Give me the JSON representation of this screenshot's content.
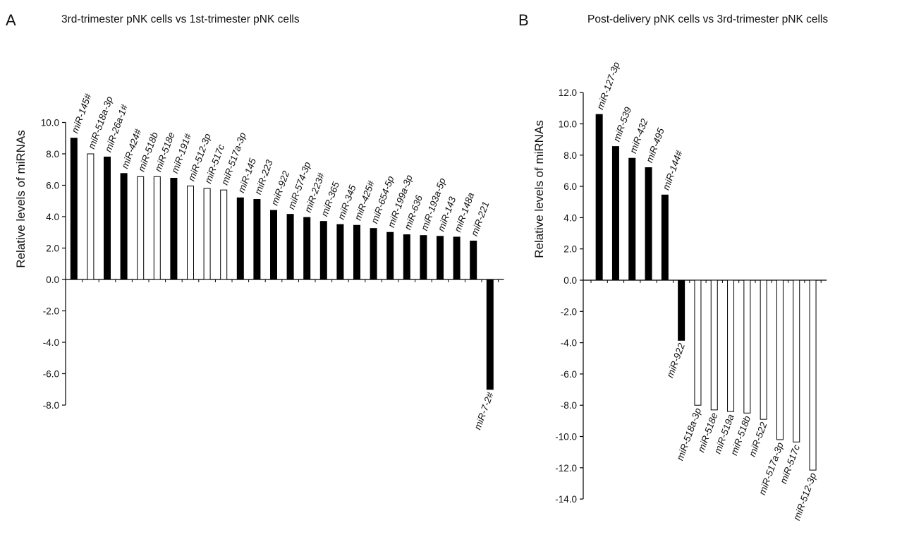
{
  "chart_data": [
    {
      "type": "bar",
      "panel": "A",
      "title": "3rd-trimester pNK cells vs 1st-trimester pNK cells",
      "xlabel": "",
      "ylabel": "Relative levels of miRNAs",
      "ylim": [
        -8.0,
        10.0
      ],
      "yticks": [
        "10.0",
        "8.0",
        "6.0",
        "4.0",
        "2.0",
        "0.0",
        "-2.0",
        "-4.0",
        "-6.0",
        "-8.0"
      ],
      "grid": false,
      "categories": [
        "miR-145#",
        "miR-518a-3p",
        "miR-26a-1#",
        "miR-424#",
        "miR-518b",
        "miR-518e",
        "miR-191#",
        "miR-512-3p",
        "miR-517c",
        "miR-517a-3p",
        "miR-145",
        "miR-223",
        "miR-922",
        "miR-574-3p",
        "miR-223#",
        "miR-365",
        "miR-345",
        "miR-425#",
        "miR-654-5p",
        "miR-199a-3p",
        "miR-636",
        "miR-193a-5p",
        "miR-143",
        "miR-148a",
        "miR-221",
        "miR-7-2#"
      ],
      "values": [
        9.0,
        8.0,
        7.8,
        6.75,
        6.55,
        6.55,
        6.45,
        5.95,
        5.8,
        5.7,
        5.2,
        5.1,
        4.4,
        4.15,
        3.95,
        3.7,
        3.5,
        3.45,
        3.25,
        3.0,
        2.85,
        2.8,
        2.75,
        2.7,
        2.45,
        -7.0
      ],
      "fill": [
        "black",
        "white",
        "black",
        "black",
        "white",
        "white",
        "black",
        "white",
        "white",
        "white",
        "black",
        "black",
        "black",
        "black",
        "black",
        "black",
        "black",
        "black",
        "black",
        "black",
        "black",
        "black",
        "black",
        "black",
        "black",
        "black"
      ]
    },
    {
      "type": "bar",
      "panel": "B",
      "title": "Post-delivery pNK cells vs 3rd-trimester pNK cells",
      "xlabel": "",
      "ylabel": "Relative levels of miRNAs",
      "ylim": [
        -14.0,
        12.0
      ],
      "yticks": [
        "12.0",
        "10.0",
        "8.0",
        "6.0",
        "4.0",
        "2.0",
        "0.0",
        "-2.0",
        "-4.0",
        "-6.0",
        "-8.0",
        "-10.0",
        "-12.0",
        "-14.0"
      ],
      "grid": false,
      "categories": [
        "miR-127-3p",
        "miR-539",
        "miR-432",
        "miR-495",
        "miR-144#",
        "miR-922",
        "miR-518a-3p",
        "miR-518e",
        "miR-519a",
        "miR-518b",
        "miR-522",
        "miR-517a-3p",
        "miR-517c",
        "miR-512-3p"
      ],
      "values": [
        10.6,
        8.55,
        7.8,
        7.2,
        5.45,
        -3.85,
        -8.0,
        -8.3,
        -8.4,
        -8.5,
        -8.9,
        -10.2,
        -10.35,
        -12.15
      ],
      "fill": [
        "black",
        "black",
        "black",
        "black",
        "black",
        "black",
        "white",
        "white",
        "white",
        "white",
        "white",
        "white",
        "white",
        "white"
      ]
    }
  ]
}
